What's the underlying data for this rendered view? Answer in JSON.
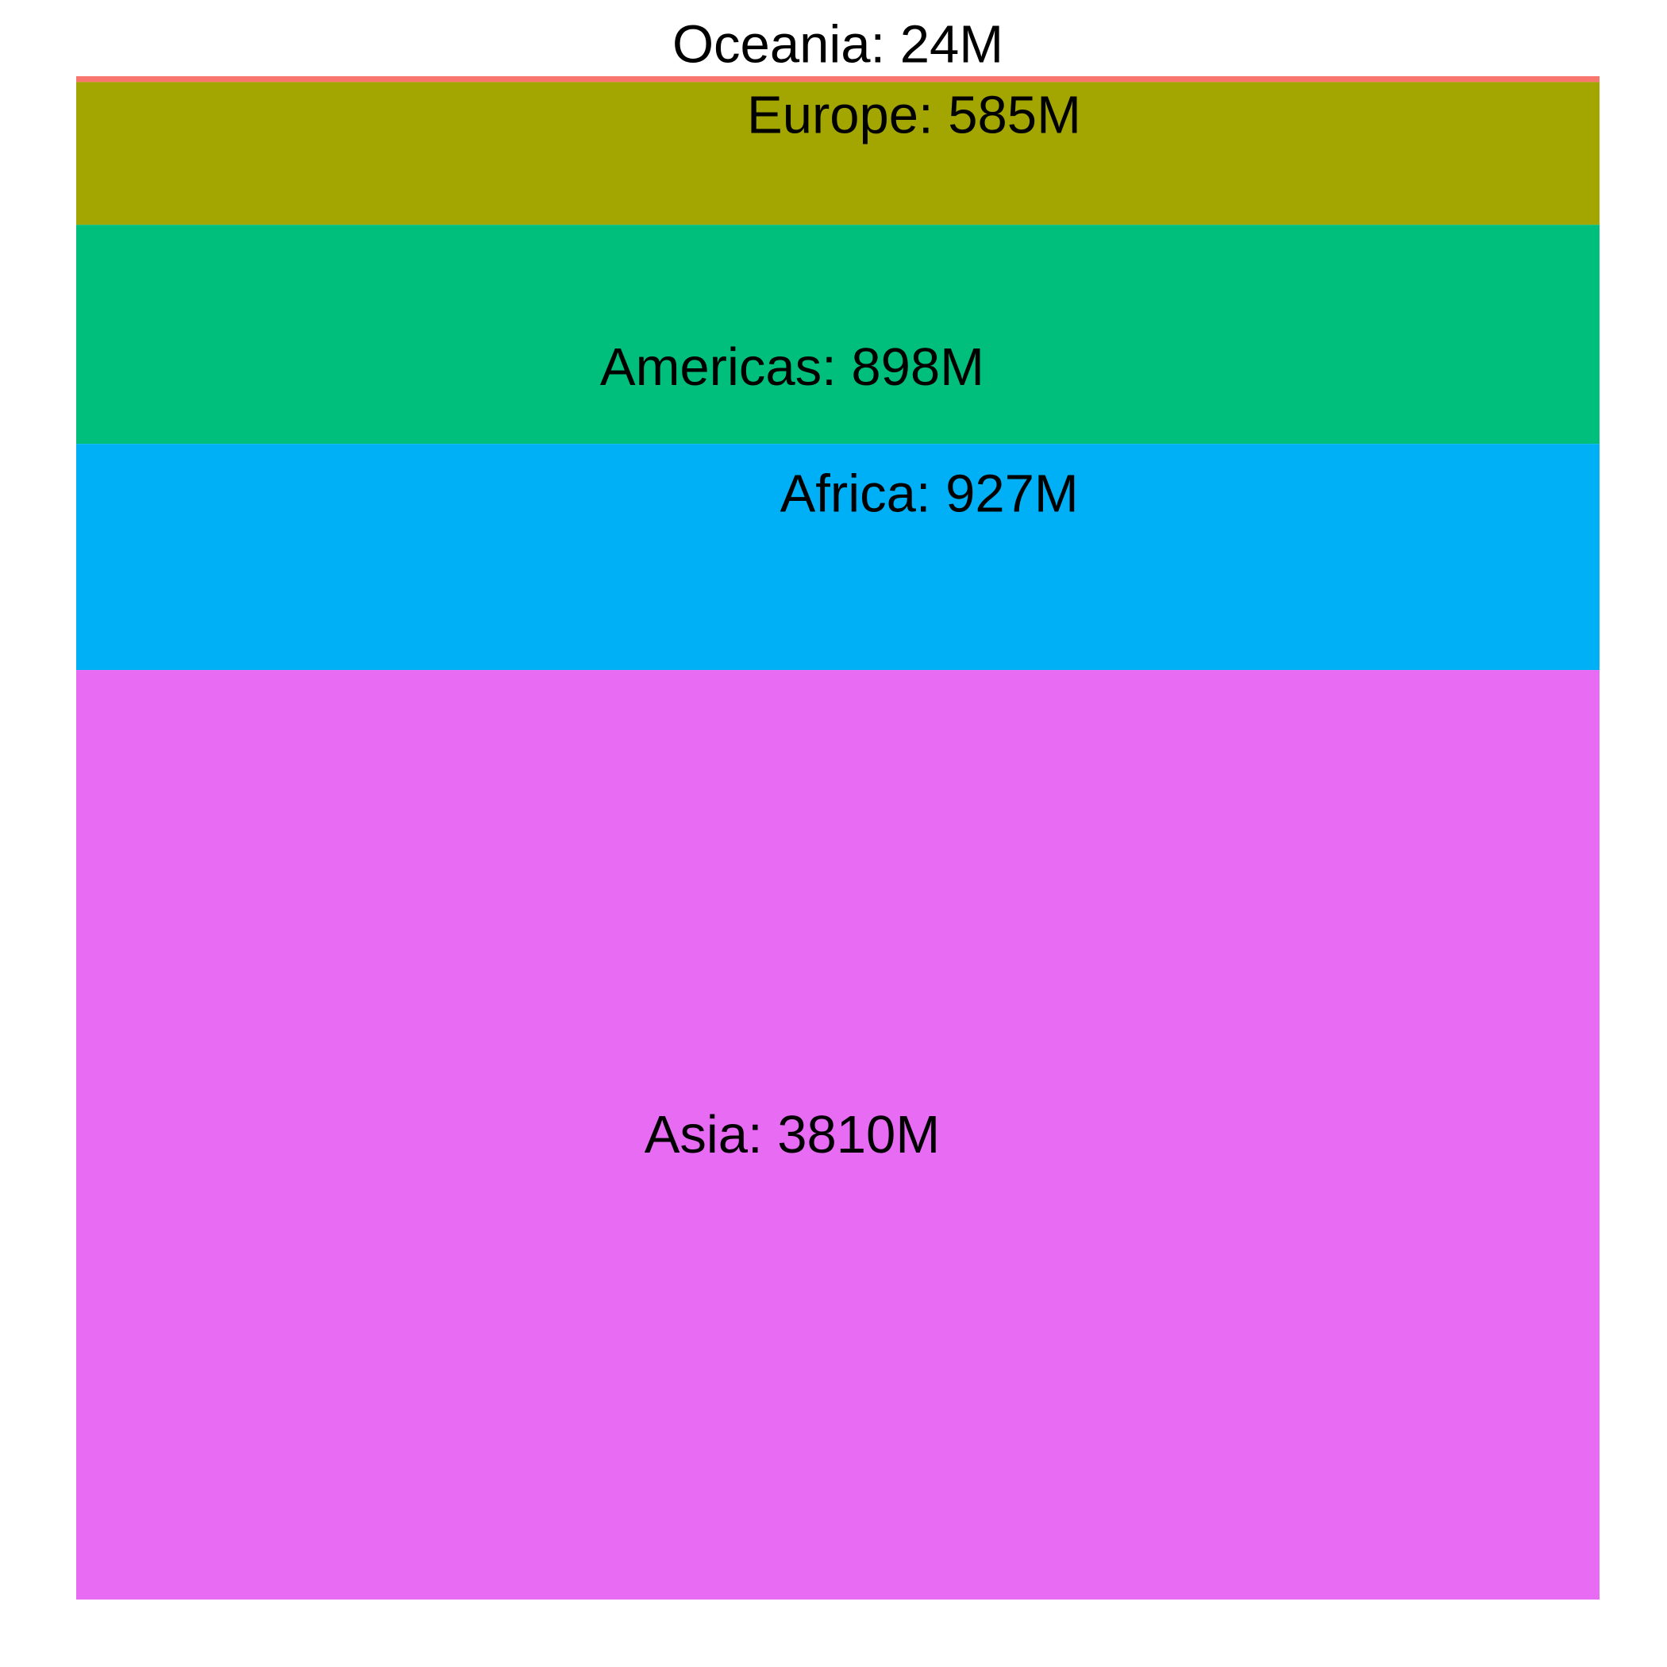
{
  "chart_data": {
    "type": "bar",
    "orientation": "stacked-vertical",
    "categories": [
      "Oceania",
      "Europe",
      "Americas",
      "Africa",
      "Asia"
    ],
    "values": [
      24,
      585,
      898,
      927,
      3810
    ],
    "unit": "M",
    "labels": [
      "Oceania: 24M",
      "Europe: 585M",
      "Americas: 898M",
      "Africa: 927M",
      "Asia: 3810M"
    ],
    "colors": {
      "Oceania": "#F8766D",
      "Europe": "#A3A500",
      "Americas": "#00BF7D",
      "Africa": "#00B0F6",
      "Asia": "#E76BF3"
    },
    "label_offsets": {
      "Oceania": 0,
      "Europe": 0.05,
      "Americas": -0.03,
      "Africa": 0.06,
      "Asia": -0.03
    },
    "title": "",
    "xlabel": "",
    "ylabel": "",
    "grid": false,
    "legend": "none"
  }
}
